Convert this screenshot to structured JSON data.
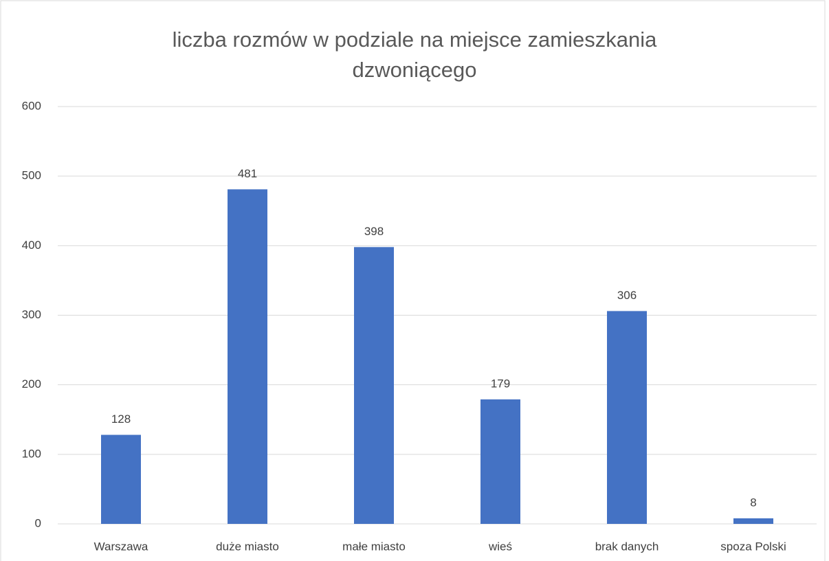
{
  "chart_data": {
    "type": "bar",
    "title": "liczba rozmów w podziale na miejsce zamieszkania dzwoniącego",
    "categories": [
      "Warszawa",
      "duże miasto",
      "małe miasto",
      "wieś",
      "brak danych",
      "spoza Polski"
    ],
    "values": [
      128,
      481,
      398,
      179,
      306,
      8
    ],
    "color": "#4472c4",
    "ylim": [
      0,
      600
    ],
    "yticks": [
      0,
      100,
      200,
      300,
      400,
      500,
      600
    ],
    "grid": true
  }
}
